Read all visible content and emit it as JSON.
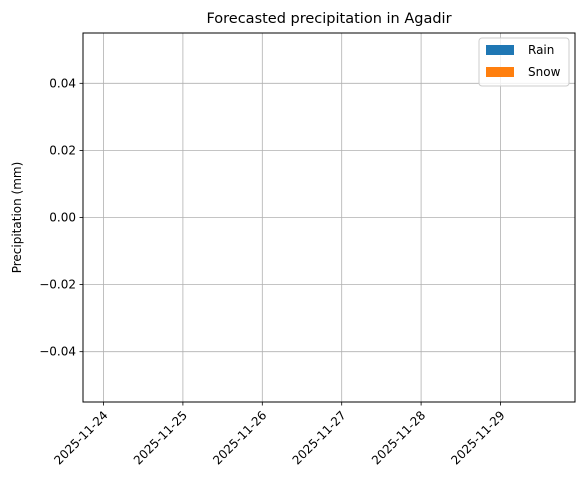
{
  "chart_data": {
    "type": "bar",
    "title": "Forecasted precipitation in Agadir",
    "xlabel": "",
    "ylabel": "Precipitation (mm)",
    "categories": [
      "2025-11-24",
      "2025-11-25",
      "2025-11-26",
      "2025-11-27",
      "2025-11-28",
      "2025-11-29"
    ],
    "series": [
      {
        "name": "Rain",
        "color": "#1f77b4",
        "values": [
          0,
          0,
          0,
          0,
          0,
          0
        ]
      },
      {
        "name": "Snow",
        "color": "#ff7f0e",
        "values": [
          0,
          0,
          0,
          0,
          0,
          0
        ]
      }
    ],
    "ylim": [
      -0.055,
      0.055
    ],
    "yticks": [
      -0.04,
      -0.02,
      0.0,
      0.02,
      0.04
    ],
    "ytick_labels": [
      "−0.04",
      "−0.02",
      "0.00",
      "0.02",
      "0.04"
    ],
    "grid": true,
    "legend_position": "top-right"
  }
}
